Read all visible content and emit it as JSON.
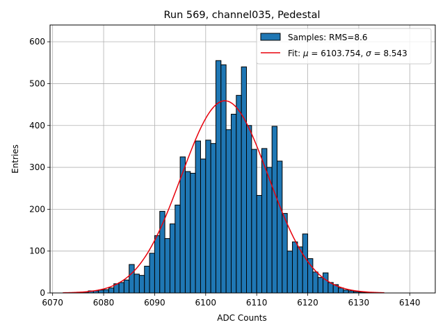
{
  "chart_data": {
    "type": "histogram",
    "title": "Run 569, channel035, Pedestal",
    "xlabel": "ADC Counts",
    "ylabel": "Entries",
    "xlim": [
      6069.5,
      6145
    ],
    "ylim": [
      0,
      640
    ],
    "xticks": [
      6070,
      6080,
      6090,
      6100,
      6110,
      6120,
      6130,
      6140
    ],
    "yticks": [
      0,
      100,
      200,
      300,
      400,
      500,
      600
    ],
    "grid": true,
    "legend_position": "top-right",
    "bin_width": 1,
    "bins": {
      "start": 6072,
      "values": [
        0,
        0,
        0,
        1,
        2,
        5,
        5,
        7,
        8,
        12,
        22,
        25,
        31,
        68,
        45,
        42,
        64,
        95,
        137,
        195,
        130,
        165,
        210,
        325,
        290,
        286,
        363,
        320,
        365,
        357,
        555,
        545,
        390,
        427,
        472,
        540,
        400,
        343,
        233,
        345,
        300,
        398,
        315,
        190,
        100,
        122,
        110,
        141,
        82,
        50,
        37,
        48,
        25,
        20,
        12,
        7,
        5,
        3,
        2,
        1,
        0,
        0,
        0
      ]
    },
    "fit": {
      "mu": 6103.754,
      "sigma": 8.543,
      "amplitude": 459,
      "x_range": [
        6072,
        6135
      ],
      "color": "#e8000b"
    },
    "series": [
      {
        "name": "Samples: RMS=8.6",
        "type": "bar",
        "color": "#1f77b4",
        "edgecolor": "#000000"
      },
      {
        "name_prefix": "Fit: ",
        "name_mu": "μ",
        "name_mid": " = 6103.754, ",
        "name_sigma": "σ",
        "name_suffix": " = 8.543",
        "type": "line",
        "color": "#e8000b"
      }
    ]
  }
}
